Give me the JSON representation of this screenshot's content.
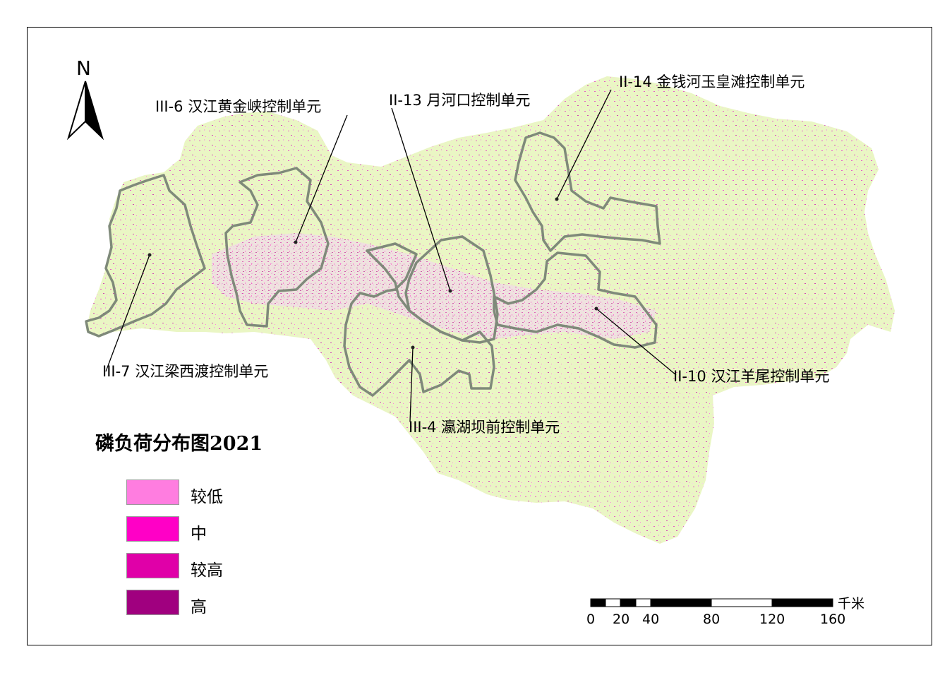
{
  "legend": {
    "title": "磷负荷分布图2021",
    "items": [
      {
        "label": "较低",
        "color": "#ff7de0"
      },
      {
        "label": "中",
        "color": "#ff00c6"
      },
      {
        "label": "较高",
        "color": "#e000a8"
      },
      {
        "label": "高",
        "color": "#a0007f"
      }
    ]
  },
  "north_arrow": {
    "letter": "N"
  },
  "units": [
    {
      "id": "iii-6",
      "label": "III-6 汉江黄金峡控制单元"
    },
    {
      "id": "ii-13",
      "label": "II-13 月河口控制单元"
    },
    {
      "id": "ii-14",
      "label": "II-14 金钱河玉皇滩控制单元"
    },
    {
      "id": "iii-7",
      "label": "III-7 汉江梁西渡控制单元"
    },
    {
      "id": "ii-10",
      "label": "II-10 汉江羊尾控制单元"
    },
    {
      "id": "iii-4",
      "label": "III-4 瀛湖坝前控制单元"
    }
  ],
  "scale_bar": {
    "unit": "千米",
    "ticks": [
      "0",
      "20",
      "40",
      "80",
      "120",
      "160"
    ]
  },
  "colors": {
    "base_land": "#ebf7c8",
    "unit_boundary": "#7f8a7a"
  }
}
